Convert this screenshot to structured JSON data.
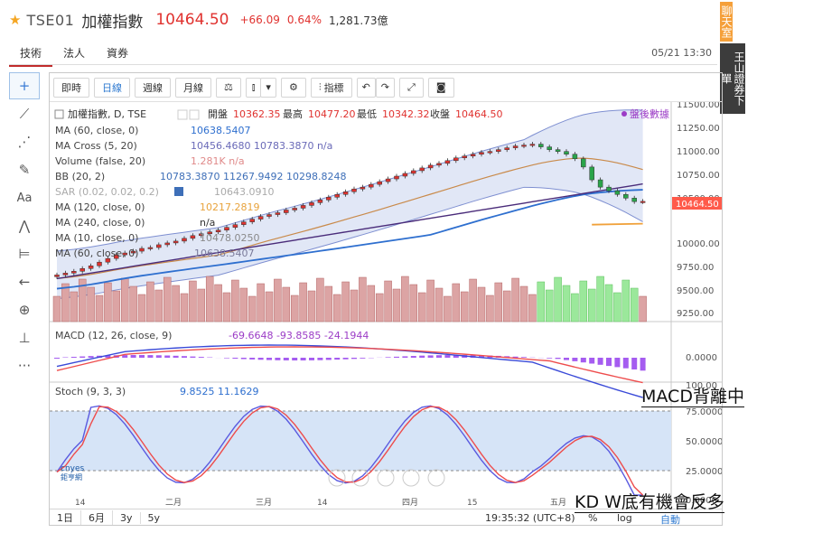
{
  "header": {
    "code": "TSE01",
    "name": "加權指數",
    "price": "10464.50",
    "change": "+66.09",
    "change_pct": "0.64%",
    "volume": "1,281.73億"
  },
  "tabs": [
    {
      "label": "技術"
    },
    {
      "label": "法人"
    },
    {
      "label": "資券"
    }
  ],
  "timestamp": "05/21 13:30",
  "banner": {
    "top": "聊天室",
    "bottom": "王山證券下單"
  },
  "left_tools": [
    {
      "icon": "crosshair-icon",
      "glyph": "+"
    },
    {
      "icon": "trendline-icon",
      "glyph": "⟋"
    },
    {
      "icon": "fib-icon",
      "glyph": "⋰"
    },
    {
      "icon": "brush-icon",
      "glyph": "✎"
    },
    {
      "icon": "text-icon",
      "glyph": "Aa"
    },
    {
      "icon": "pattern-icon",
      "glyph": "⋀"
    },
    {
      "icon": "measure-icon",
      "glyph": "⊨"
    },
    {
      "icon": "arrow-left-icon",
      "glyph": "←"
    },
    {
      "icon": "zoom-icon",
      "glyph": "⊕"
    },
    {
      "icon": "ruler-icon",
      "glyph": "⊥"
    },
    {
      "icon": "more-icon",
      "glyph": "···"
    }
  ],
  "toolbar": {
    "intraday": "即時",
    "daily": "日線",
    "weekly": "週線",
    "monthly": "月線",
    "scale_icon": "⚖",
    "candle_icon": "⫾",
    "dropdown_icon": "▾",
    "settings_icon": "⚙",
    "indicators_icon": "⫶",
    "indicators": "指標",
    "undo_icon": "↶",
    "redo_icon": "↷",
    "fullscreen_icon": "⤢",
    "camera_icon": "◙"
  },
  "legend": {
    "title": "加權指數, D, TSE",
    "open_label": "開盤",
    "open": "10362.35",
    "high_label": "最高",
    "high": "10477.20",
    "low_label": "最低",
    "low": "10342.32",
    "close_label": "收盤",
    "close": "10464.50",
    "after_hours": "盤後數據",
    "rows": [
      {
        "label": "MA (60, close, 0)",
        "values": "10638.5407",
        "color": "#2e6fcf"
      },
      {
        "label": "MA Cross (5, 20)",
        "values": "10456.4680 10783.3870 n/a",
        "color": "#6a6ab8"
      },
      {
        "label": "Volume (false, 20)",
        "values": "1.281K n/a",
        "color": "#e08a8a"
      },
      {
        "label": "BB (20, 2)",
        "values": "10783.3870 11267.9492 10298.8248",
        "color": "#3e6fb8"
      },
      {
        "label": "SAR (0.02, 0.02, 0.2)",
        "values": "10643.0910",
        "color": "#9aa0b8"
      },
      {
        "label": "MA (120, close, 0)",
        "values": "10217.2819",
        "color": "#e8a33c"
      },
      {
        "label": "MA (240, close, 0)",
        "values": "n/a",
        "color": "#333333"
      },
      {
        "label": "MA (10, close, 0)",
        "values": "10478.0250",
        "color": "#8a8a8a"
      },
      {
        "label": "MA (60, close, 0)",
        "values": "10638.5407",
        "color": "#7a7a9a"
      }
    ]
  },
  "price_axis": [
    "11500.00",
    "11250.00",
    "11000.00",
    "10750.00",
    "10500.00",
    "10464.50",
    "10000.00",
    "9750.00",
    "9500.00",
    "9250.00"
  ],
  "last_price_tag": "10464.50",
  "macd": {
    "label": "MACD (12, 26, close, 9)",
    "values": "-69.6648 -93.8585 -24.1944",
    "axis": [
      "0.0000"
    ]
  },
  "stoch": {
    "label": "Stoch (9, 3, 3)",
    "values": "9.8525 11.1629",
    "axis": [
      "100.00",
      "75.0000",
      "50.0000",
      "25.0000",
      "0.0000"
    ]
  },
  "watermark": {
    "top": "cnyes",
    "bottom": "鉅亨網"
  },
  "x_axis": [
    "14",
    "二月",
    "三月",
    "14",
    "四月",
    "15",
    "五月"
  ],
  "bottom_bar": {
    "ranges": [
      "1日",
      "6月",
      "3y",
      "5y"
    ],
    "time": "19:35:32 (UTC+8)",
    "pct": "%",
    "log": "log",
    "auto": "自動"
  },
  "annotations": {
    "macd": "MACD背離中",
    "kd": "KD W底有機會反多"
  },
  "colors": {
    "up": "#e0322f",
    "down": "#2aa44a",
    "accent": "#2f7ad0"
  },
  "chart_data": {
    "type": "candlestick",
    "title": "加權指數, D, TSE",
    "ylim": [
      9150,
      11550
    ],
    "last": {
      "open": 10362.35,
      "high": 10477.2,
      "low": 10342.32,
      "close": 10464.5
    },
    "closes": [
      9660,
      9680,
      9700,
      9730,
      9760,
      9800,
      9840,
      9880,
      9900,
      9920,
      9950,
      9960,
      9990,
      10010,
      10030,
      10060,
      10090,
      10110,
      10130,
      10150,
      10180,
      10210,
      10240,
      10270,
      10300,
      10320,
      10340,
      10370,
      10390,
      10420,
      10450,
      10480,
      10510,
      10540,
      10570,
      10600,
      10620,
      10650,
      10680,
      10710,
      10740,
      10770,
      10800,
      10830,
      10860,
      10880,
      10910,
      10940,
      10960,
      10980,
      11000,
      11010,
      11030,
      11050,
      11070,
      11080,
      11090,
      11060,
      11030,
      11010,
      10980,
      10930,
      10840,
      10700,
      10620,
      10580,
      10540,
      10500,
      10462,
      10464.5
    ],
    "macd_values": [
      -69.6648,
      -93.8585,
      -24.1944
    ],
    "stoch_values": [
      9.8525,
      11.1629
    ]
  }
}
